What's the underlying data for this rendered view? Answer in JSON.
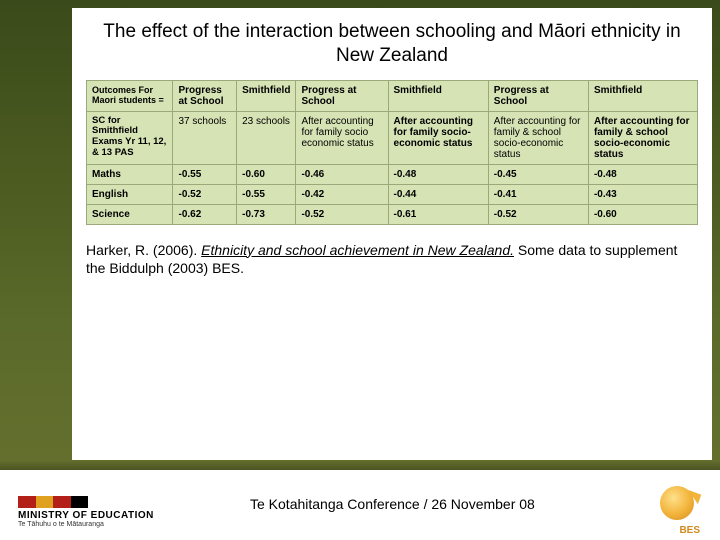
{
  "title": "The effect of the interaction between schooling and Māori ethnicity in New Zealand",
  "table": {
    "background_color": "#d6e3b5",
    "border_color": "#9aa87a",
    "header_cells": [
      "Outcomes For Maori students =",
      "Progress at School",
      "Smithfield",
      "Progress at School",
      "Smithfield",
      "Progress at School",
      "Smithfield"
    ],
    "context_row": [
      "SC for Smithfield Exams Yr 11, 12, & 13 PAS",
      "37 schools",
      "23 schools",
      "After accounting for family socio economic status",
      "After accounting for family socio-economic status",
      "After accounting for family & school socio-economic status",
      "After accounting for family & school socio-economic status"
    ],
    "rows": [
      {
        "label": "Maths",
        "values": [
          "-0.55",
          "-0.60",
          "-0.46",
          "-0.48",
          "-0.45",
          "-0.48"
        ]
      },
      {
        "label": "English",
        "values": [
          "-0.52",
          "-0.55",
          "-0.42",
          "-0.44",
          "-0.41",
          "-0.43"
        ]
      },
      {
        "label": "Science",
        "values": [
          "-0.62",
          "-0.73",
          "-0.52",
          "-0.61",
          "-0.52",
          "-0.60"
        ]
      }
    ]
  },
  "citation": {
    "author_year": "Harker, R. (2006).",
    "title_italic": "Ethnicity and school achievement in New Zealand.",
    "rest": "Some data to supplement the Biddulph (2003) BES."
  },
  "footer": {
    "moe_main": "MINISTRY OF EDUCATION",
    "moe_sub": "Te Tāhuhu o te Mātauranga",
    "stripe_colors": [
      "#b22017",
      "#e0a020",
      "#b22017",
      "#000000"
    ],
    "caption": "Te Kotahitanga Conference / 26 November 08",
    "bes_label": "BES"
  }
}
